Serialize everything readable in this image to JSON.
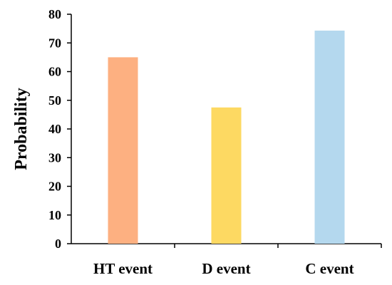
{
  "chart_data": {
    "type": "bar",
    "title": "",
    "xlabel": "",
    "ylabel": "Probability",
    "categories": [
      "HT event",
      "D event",
      "C event"
    ],
    "values": [
      65,
      47.5,
      74.3
    ],
    "bar_colors": [
      "#FDB081",
      "#FDD962",
      "#B4D8EE"
    ],
    "ylim": [
      0,
      80
    ],
    "yticks": [
      0,
      10,
      20,
      30,
      40,
      50,
      60,
      70,
      80
    ],
    "grid": false,
    "legend": "none"
  }
}
